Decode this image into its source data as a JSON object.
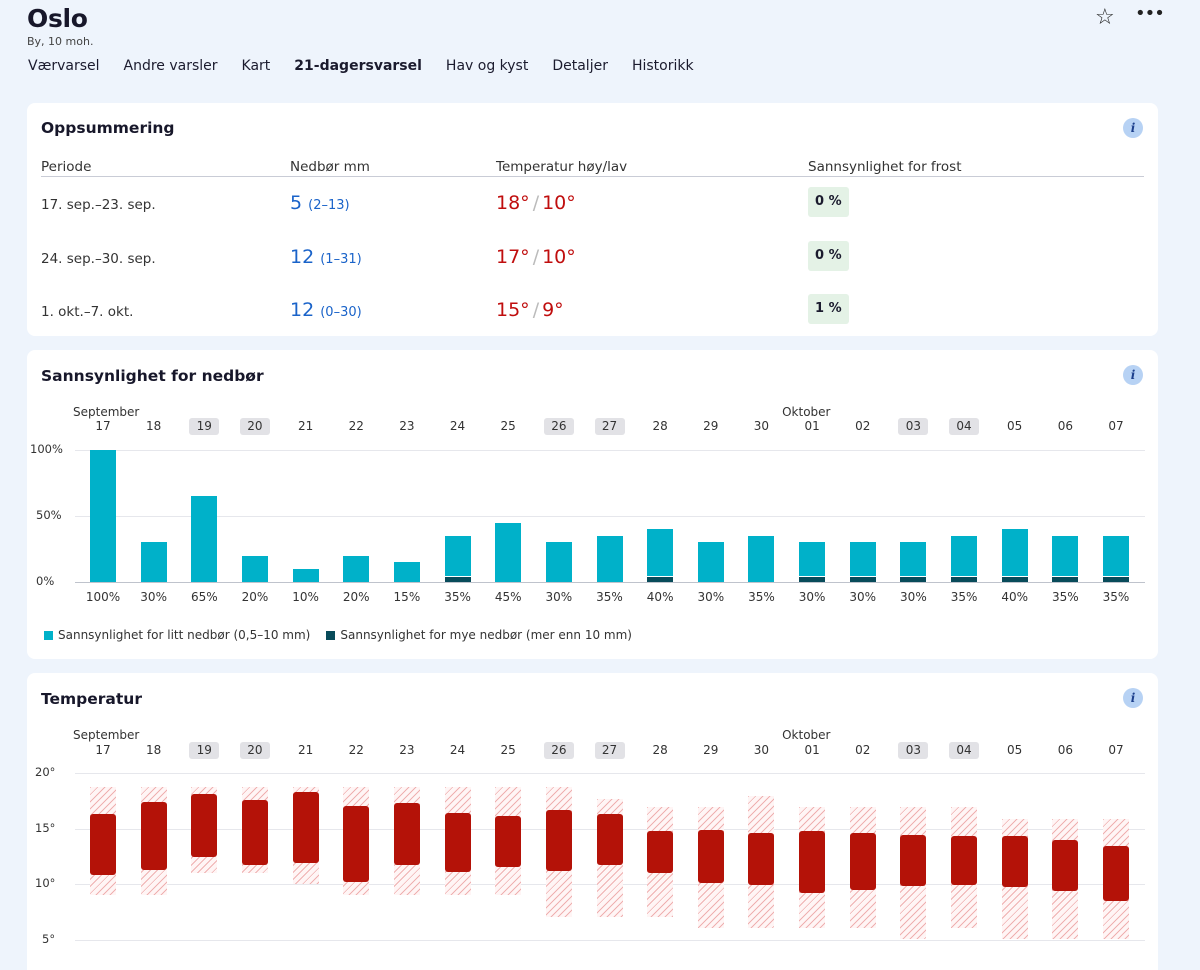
{
  "location": {
    "name": "Oslo",
    "subtitle": "By, 10 moh."
  },
  "header_icons": [
    "star-icon",
    "more-icon"
  ],
  "tabs": [
    {
      "label": "Værvarsel",
      "active": false
    },
    {
      "label": "Andre varsler",
      "active": false
    },
    {
      "label": "Kart",
      "active": false
    },
    {
      "label": "21-dagersvarsel",
      "active": true
    },
    {
      "label": "Hav og kyst",
      "active": false
    },
    {
      "label": "Detaljer",
      "active": false
    },
    {
      "label": "Historikk",
      "active": false
    }
  ],
  "summary": {
    "title": "Oppsummering",
    "headers": {
      "period": "Periode",
      "precip": "Nedbør mm",
      "temp": "Temperatur høy/lav",
      "frost": "Sannsynlighet for frost"
    },
    "rows": [
      {
        "period": "17. sep.–23. sep.",
        "precip": "5",
        "precip_range": "(2–13)",
        "temp_high": "18°",
        "temp_low": "10°",
        "frost": "0 %"
      },
      {
        "period": "24. sep.–30. sep.",
        "precip": "12",
        "precip_range": "(1–31)",
        "temp_high": "17°",
        "temp_low": "10°",
        "frost": "0 %"
      },
      {
        "period": "1. okt.–7. okt.",
        "precip": "12",
        "precip_range": "(0–30)",
        "temp_high": "15°",
        "temp_low": "9°",
        "frost": "1 %"
      }
    ]
  },
  "precip_chart": {
    "title": "Sannsynlighet for nedbør",
    "legend_light": "Sannsynlighet for litt nedbør (0,5–10 mm)",
    "legend_heavy": "Sannsynlighet for mye nedbør (mer enn 10 mm)"
  },
  "temp_chart": {
    "title": "Temperatur"
  },
  "colors": {
    "light_precip": "#00b1c9",
    "heavy_precip": "#084b5a",
    "temp_bar": "#b41208",
    "accent_blue": "#1a63c9",
    "temp_red": "#c00e0e"
  },
  "chart_data": [
    {
      "type": "bar",
      "title": "Sannsynlighet for nedbør",
      "month_labels": [
        {
          "label": "September",
          "index": 0
        },
        {
          "label": "Oktober",
          "index": 14
        }
      ],
      "categories": [
        "17",
        "18",
        "19",
        "20",
        "21",
        "22",
        "23",
        "24",
        "25",
        "26",
        "27",
        "28",
        "29",
        "30",
        "01",
        "02",
        "03",
        "04",
        "05",
        "06",
        "07"
      ],
      "weekend": [
        false,
        false,
        true,
        true,
        false,
        false,
        false,
        false,
        false,
        true,
        true,
        false,
        false,
        false,
        false,
        false,
        true,
        true,
        false,
        false,
        false
      ],
      "ylim": [
        0,
        100
      ],
      "yticks": [
        "0%",
        "50%",
        "100%"
      ],
      "series": [
        {
          "name": "Sannsynlighet for litt nedbør (0,5–10 mm)",
          "values": [
            100,
            30,
            65,
            20,
            10,
            20,
            15,
            35,
            45,
            30,
            35,
            40,
            30,
            35,
            30,
            30,
            30,
            35,
            40,
            35,
            35
          ]
        },
        {
          "name": "Sannsynlighet for mye nedbør (mer enn 10 mm)",
          "values": [
            0,
            0,
            0,
            0,
            0,
            0,
            0,
            5,
            0,
            0,
            0,
            5,
            0,
            0,
            5,
            5,
            5,
            5,
            5,
            5,
            5
          ]
        }
      ],
      "value_labels": [
        "100%",
        "30%",
        "65%",
        "20%",
        "10%",
        "20%",
        "15%",
        "35%",
        "45%",
        "30%",
        "35%",
        "40%",
        "30%",
        "35%",
        "30%",
        "30%",
        "30%",
        "35%",
        "40%",
        "35%",
        "35%"
      ]
    },
    {
      "type": "bar",
      "title": "Temperatur",
      "month_labels": [
        {
          "label": "September",
          "index": 0
        },
        {
          "label": "Oktober",
          "index": 14
        }
      ],
      "categories": [
        "17",
        "18",
        "19",
        "20",
        "21",
        "22",
        "23",
        "24",
        "25",
        "26",
        "27",
        "28",
        "29",
        "30",
        "01",
        "02",
        "03",
        "04",
        "05",
        "06",
        "07"
      ],
      "weekend": [
        false,
        false,
        true,
        true,
        false,
        false,
        false,
        false,
        false,
        true,
        true,
        false,
        false,
        false,
        false,
        false,
        true,
        true,
        false,
        false,
        false
      ],
      "ylim": [
        5,
        20
      ],
      "yticks": [
        "5°",
        "10°",
        "15°",
        "20°"
      ],
      "series": [
        {
          "name": "outer_range",
          "low": [
            9,
            9,
            11,
            11,
            10,
            9,
            9,
            9,
            9,
            7,
            7,
            7,
            6,
            6,
            6,
            6,
            5,
            6,
            5,
            5,
            5
          ],
          "high": [
            18.7,
            18.7,
            18.7,
            18.7,
            18.7,
            18.7,
            18.7,
            18.7,
            18.7,
            18.7,
            17.7,
            16.9,
            16.9,
            17.9,
            16.9,
            16.9,
            16.9,
            16.9,
            15.9,
            15.9,
            15.9
          ]
        },
        {
          "name": "likely_range",
          "low": [
            10.8,
            11.3,
            12.4,
            11.7,
            11.9,
            10.2,
            11.7,
            11.1,
            11.5,
            11.2,
            11.7,
            11,
            10.1,
            9.9,
            9.2,
            9.5,
            9.8,
            9.9,
            9.7,
            9.4,
            8.5
          ],
          "high": [
            16.3,
            17.4,
            18.1,
            17.6,
            18.3,
            17,
            17.3,
            16.4,
            16.1,
            16.7,
            16.3,
            14.8,
            14.9,
            14.6,
            14.8,
            14.6,
            14.4,
            14.3,
            14.3,
            14,
            13.4
          ]
        }
      ]
    }
  ]
}
